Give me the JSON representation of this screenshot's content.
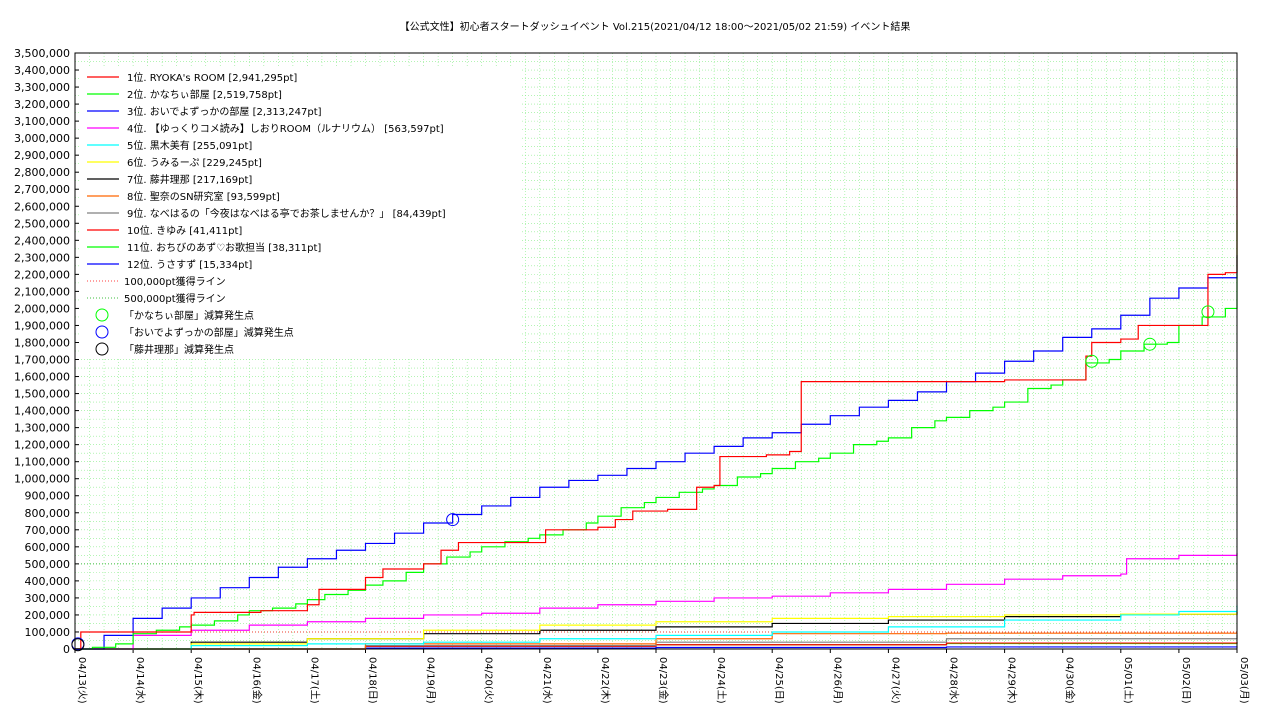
{
  "chart_data": {
    "type": "line",
    "title": "【公式文性】初心者スタートダッシュイベント Vol.215(2021/04/12 18:00〜2021/05/02 21:59)",
    "subtitle": "イベント結果",
    "xlabel": "",
    "ylabel": "",
    "ylim": [
      0,
      3500000
    ],
    "xlim": [
      "04/13",
      "05/03"
    ],
    "grid": true,
    "legend_position": "top-left",
    "x_ticks": [
      "04/13(火)",
      "04/14(水)",
      "04/15(木)",
      "04/16(金)",
      "04/17(土)",
      "04/18(日)",
      "04/19(月)",
      "04/20(火)",
      "04/21(水)",
      "04/22(木)",
      "04/23(金)",
      "04/24(土)",
      "04/25(日)",
      "04/26(月)",
      "04/27(火)",
      "04/28(水)",
      "04/29(木)",
      "04/30(金)",
      "05/01(土)",
      "05/02(日)",
      "05/03(月)"
    ],
    "y_ticks": [
      "0",
      "100,000",
      "200,000",
      "300,000",
      "400,000",
      "500,000",
      "600,000",
      "700,000",
      "800,000",
      "900,000",
      "1,000,000",
      "1,100,000",
      "1,200,000",
      "1,300,000",
      "1,400,000",
      "1,500,000",
      "1,600,000",
      "1,700,000",
      "1,800,000",
      "1,900,000",
      "2,000,000",
      "2,100,000",
      "2,200,000",
      "2,300,000",
      "2,400,000",
      "2,500,000",
      "2,600,000",
      "2,700,000",
      "2,800,000",
      "2,900,000",
      "3,000,000",
      "3,100,000",
      "3,200,000",
      "3,300,000",
      "3,400,000",
      "3,500,000"
    ],
    "series": [
      {
        "name": "1位. RYOKA's ROOM [2,941,295pt]",
        "color": "#ff0000",
        "x": [
          0,
          0.1,
          1.0,
          1.02,
          1.5,
          2.0,
          2.05,
          2.9,
          3.2,
          3.9,
          4.0,
          4.2,
          4.5,
          5.0,
          5.3,
          5.7,
          6.0,
          6.3,
          6.6,
          7.0,
          7.5,
          8.0,
          8.1,
          9.0,
          9.3,
          9.6,
          10.2,
          10.7,
          11.0,
          11.1,
          11.7,
          11.9,
          12.3,
          12.5,
          12.9,
          15.0,
          16.0,
          17.0,
          17.4,
          17.5,
          18.0,
          18.3,
          18.6,
          19.0,
          19.5,
          19.8,
          20.0,
          20.0,
          20.0,
          20.0
        ],
        "y": [
          0,
          100000,
          100000,
          100000,
          100000,
          200000,
          215000,
          215000,
          225000,
          225000,
          260000,
          350000,
          350000,
          420000,
          470000,
          470000,
          500000,
          580000,
          625000,
          625000,
          625000,
          625000,
          700000,
          715000,
          760000,
          810000,
          820000,
          950000,
          960000,
          1130000,
          1130000,
          1140000,
          1160000,
          1570000,
          1570000,
          1570000,
          1580000,
          1580000,
          1720000,
          1800000,
          1820000,
          1900000,
          1900000,
          1900000,
          2200000,
          2210000,
          2260000,
          2300000,
          2400000,
          2941295
        ]
      },
      {
        "name": "2位. かなちぃ部屋 [2,519,758pt]",
        "color": "#00ff00",
        "x": [
          0,
          0.3,
          0.7,
          1.0,
          1.4,
          1.8,
          2.0,
          2.4,
          2.8,
          3.0,
          3.4,
          3.8,
          4.0,
          4.3,
          4.7,
          5.0,
          5.3,
          5.7,
          6.0,
          6.4,
          6.8,
          7.0,
          7.4,
          7.8,
          8.0,
          8.4,
          8.8,
          9.0,
          9.4,
          9.8,
          10.0,
          10.4,
          10.8,
          11.0,
          11.4,
          11.8,
          12.0,
          12.4,
          12.8,
          13.0,
          13.4,
          13.8,
          14.0,
          14.4,
          14.8,
          15.0,
          15.4,
          15.8,
          16.0,
          16.4,
          16.8,
          17.0,
          17.4,
          17.8,
          18.0,
          18.4,
          18.8,
          19.0,
          19.4,
          19.8,
          20.0
        ],
        "y": [
          0,
          10000,
          30000,
          90000,
          110000,
          130000,
          140000,
          165000,
          200000,
          225000,
          240000,
          265000,
          290000,
          320000,
          345000,
          375000,
          400000,
          450000,
          500000,
          540000,
          570000,
          600000,
          630000,
          650000,
          670000,
          700000,
          740000,
          780000,
          830000,
          860000,
          890000,
          920000,
          940000,
          960000,
          1010000,
          1030000,
          1060000,
          1100000,
          1120000,
          1150000,
          1200000,
          1220000,
          1240000,
          1300000,
          1340000,
          1360000,
          1400000,
          1420000,
          1450000,
          1530000,
          1550000,
          1580000,
          1680000,
          1700000,
          1750000,
          1790000,
          1800000,
          1900000,
          1950000,
          2000000,
          2519758
        ]
      },
      {
        "name": "3位. おいでよずっかの部屋 [2,313,247pt]",
        "color": "#0000ff",
        "x": [
          0,
          0.5,
          1.0,
          1.5,
          2.0,
          2.5,
          3.0,
          3.5,
          4.0,
          4.5,
          5.0,
          5.5,
          6.0,
          6.5,
          7.0,
          7.5,
          8.0,
          8.5,
          9.0,
          9.5,
          10.0,
          10.5,
          11.0,
          11.5,
          12.0,
          12.5,
          13.0,
          13.5,
          14.0,
          14.5,
          15.0,
          15.5,
          16.0,
          16.5,
          17.0,
          17.5,
          18.0,
          18.5,
          19.0,
          19.5,
          20.0
        ],
        "y": [
          0,
          80000,
          180000,
          240000,
          300000,
          360000,
          420000,
          480000,
          530000,
          580000,
          620000,
          680000,
          740000,
          790000,
          840000,
          890000,
          950000,
          990000,
          1020000,
          1060000,
          1100000,
          1150000,
          1190000,
          1240000,
          1270000,
          1320000,
          1370000,
          1420000,
          1460000,
          1510000,
          1570000,
          1620000,
          1690000,
          1750000,
          1830000,
          1880000,
          1960000,
          2060000,
          2120000,
          2180000,
          2313247
        ]
      },
      {
        "name": "4位. 【ゆっくりコメ読み】しおりROOM（ルナリウム） [563,597pt]",
        "color": "#ff00ff",
        "x": [
          0,
          1,
          2,
          3,
          4,
          5,
          6,
          7,
          8,
          9,
          10,
          11,
          12,
          13,
          14,
          15,
          16,
          17,
          18,
          18.1,
          19,
          20
        ],
        "y": [
          0,
          80000,
          110000,
          140000,
          160000,
          180000,
          200000,
          210000,
          240000,
          260000,
          280000,
          300000,
          310000,
          330000,
          350000,
          380000,
          410000,
          430000,
          440000,
          530000,
          550000,
          563597
        ]
      },
      {
        "name": "5位. 黒木美有 [255,091pt]",
        "color": "#00ffff",
        "x": [
          0,
          2,
          4,
          6,
          8,
          10,
          12,
          14,
          16,
          18,
          19,
          20
        ],
        "y": [
          0,
          20000,
          30000,
          40000,
          60000,
          80000,
          100000,
          130000,
          170000,
          200000,
          220000,
          255091
        ]
      },
      {
        "name": "6位. うみるーぷ [229,245pt]",
        "color": "#ffff00",
        "x": [
          0,
          2,
          4,
          6,
          8,
          10,
          12,
          14,
          16,
          18,
          20
        ],
        "y": [
          0,
          30000,
          60000,
          110000,
          140000,
          160000,
          180000,
          190000,
          200000,
          205000,
          229245
        ]
      },
      {
        "name": "7位. 藤井理那 [217,169pt]",
        "color": "#000000",
        "x": [
          0,
          2,
          4,
          6,
          8,
          10,
          12,
          14,
          16,
          18,
          20
        ],
        "y": [
          0,
          40000,
          60000,
          90000,
          110000,
          130000,
          150000,
          170000,
          190000,
          205000,
          217169
        ]
      },
      {
        "name": "8位. 聖奈のSN研究室 [93,599pt]",
        "color": "#ff6600",
        "x": [
          0,
          5,
          10,
          12,
          15,
          20
        ],
        "y": [
          0,
          30000,
          60000,
          90000,
          93000,
          93599
        ]
      },
      {
        "name": "9位. なべはるの「今夜はなべはる亭でお茶しませんか？」 [84,439pt]",
        "color": "#808080",
        "x": [
          0,
          5,
          10,
          15,
          20
        ],
        "y": [
          0,
          20000,
          40000,
          60000,
          84439
        ]
      },
      {
        "name": "10位. きゆみ [41,411pt]",
        "color": "#ff0000",
        "x": [
          0,
          5,
          10,
          15,
          20
        ],
        "y": [
          0,
          15000,
          25000,
          35000,
          41411
        ]
      },
      {
        "name": "11位. おちびのあず♡お歌担当 [38,311pt]",
        "color": "#00ff00",
        "x": [
          0,
          5,
          10,
          15,
          20
        ],
        "y": [
          0,
          15000,
          25000,
          32000,
          38311
        ]
      },
      {
        "name": "12位. うさすず [15,334pt]",
        "color": "#0000ff",
        "x": [
          0,
          5,
          10,
          15,
          20
        ],
        "y": [
          0,
          5000,
          9000,
          12000,
          15334
        ]
      }
    ],
    "reference_lines": [
      {
        "name": "100,000pt獲得ライン",
        "y": 100000,
        "color": "#ff0000"
      },
      {
        "name": "500,000pt獲得ライン",
        "y": 500000,
        "color": "#00aa00"
      }
    ],
    "markers": [
      {
        "name": "「かなちぃ部屋」減算発生点",
        "color": "#00ff00",
        "points": [
          [
            17.5,
            1690000
          ],
          [
            18.5,
            1790000
          ],
          [
            19.5,
            1980000
          ]
        ]
      },
      {
        "name": "「おいでよずっかの部屋」減算発生点",
        "color": "#0000ff",
        "points": [
          [
            0.05,
            30000
          ],
          [
            6.5,
            760000
          ]
        ]
      },
      {
        "name": "「藤井理那」減算発生点",
        "color": "#000000",
        "points": [
          [
            0.05,
            25000
          ]
        ]
      }
    ]
  }
}
